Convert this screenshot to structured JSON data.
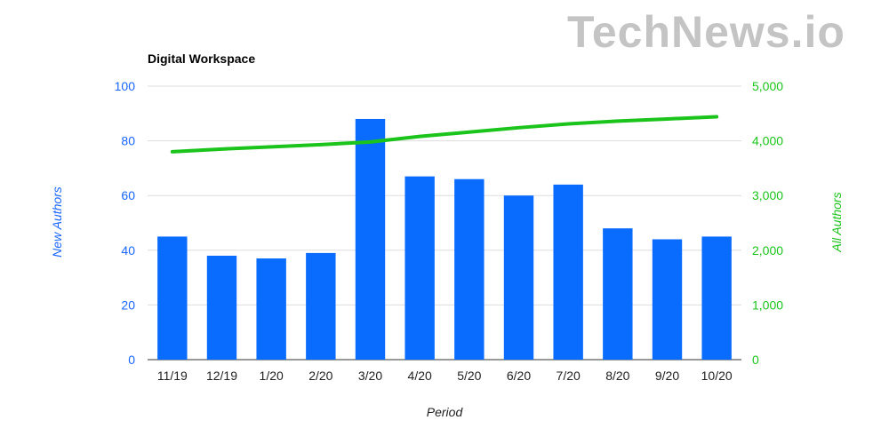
{
  "watermark": "TechNews.io",
  "chart_data": {
    "type": "bar",
    "title": "Digital Workspace",
    "xlabel": "Period",
    "ylabel": "New Authors",
    "y2label": "All Authors",
    "categories": [
      "11/19",
      "12/19",
      "1/20",
      "2/20",
      "3/20",
      "4/20",
      "5/20",
      "6/20",
      "7/20",
      "8/20",
      "9/20",
      "10/20"
    ],
    "series": [
      {
        "name": "New Authors",
        "type": "bar",
        "axis": "left",
        "color": "#0a6cff",
        "values": [
          45,
          38,
          37,
          39,
          88,
          67,
          66,
          60,
          64,
          48,
          44,
          45
        ]
      },
      {
        "name": "All Authors",
        "type": "line",
        "axis": "right",
        "color": "#1bc41b",
        "values": [
          3800,
          3850,
          3890,
          3930,
          3980,
          4080,
          4160,
          4240,
          4310,
          4360,
          4400,
          4440
        ]
      }
    ],
    "ylim": [
      0,
      100
    ],
    "y2lim": [
      0,
      5000
    ],
    "yticks": [
      "0",
      "20",
      "40",
      "60",
      "80",
      "100"
    ],
    "y2ticks": [
      "0",
      "1,000",
      "2,000",
      "3,000",
      "4,000",
      "5,000"
    ],
    "grid": true,
    "legend": "none"
  }
}
